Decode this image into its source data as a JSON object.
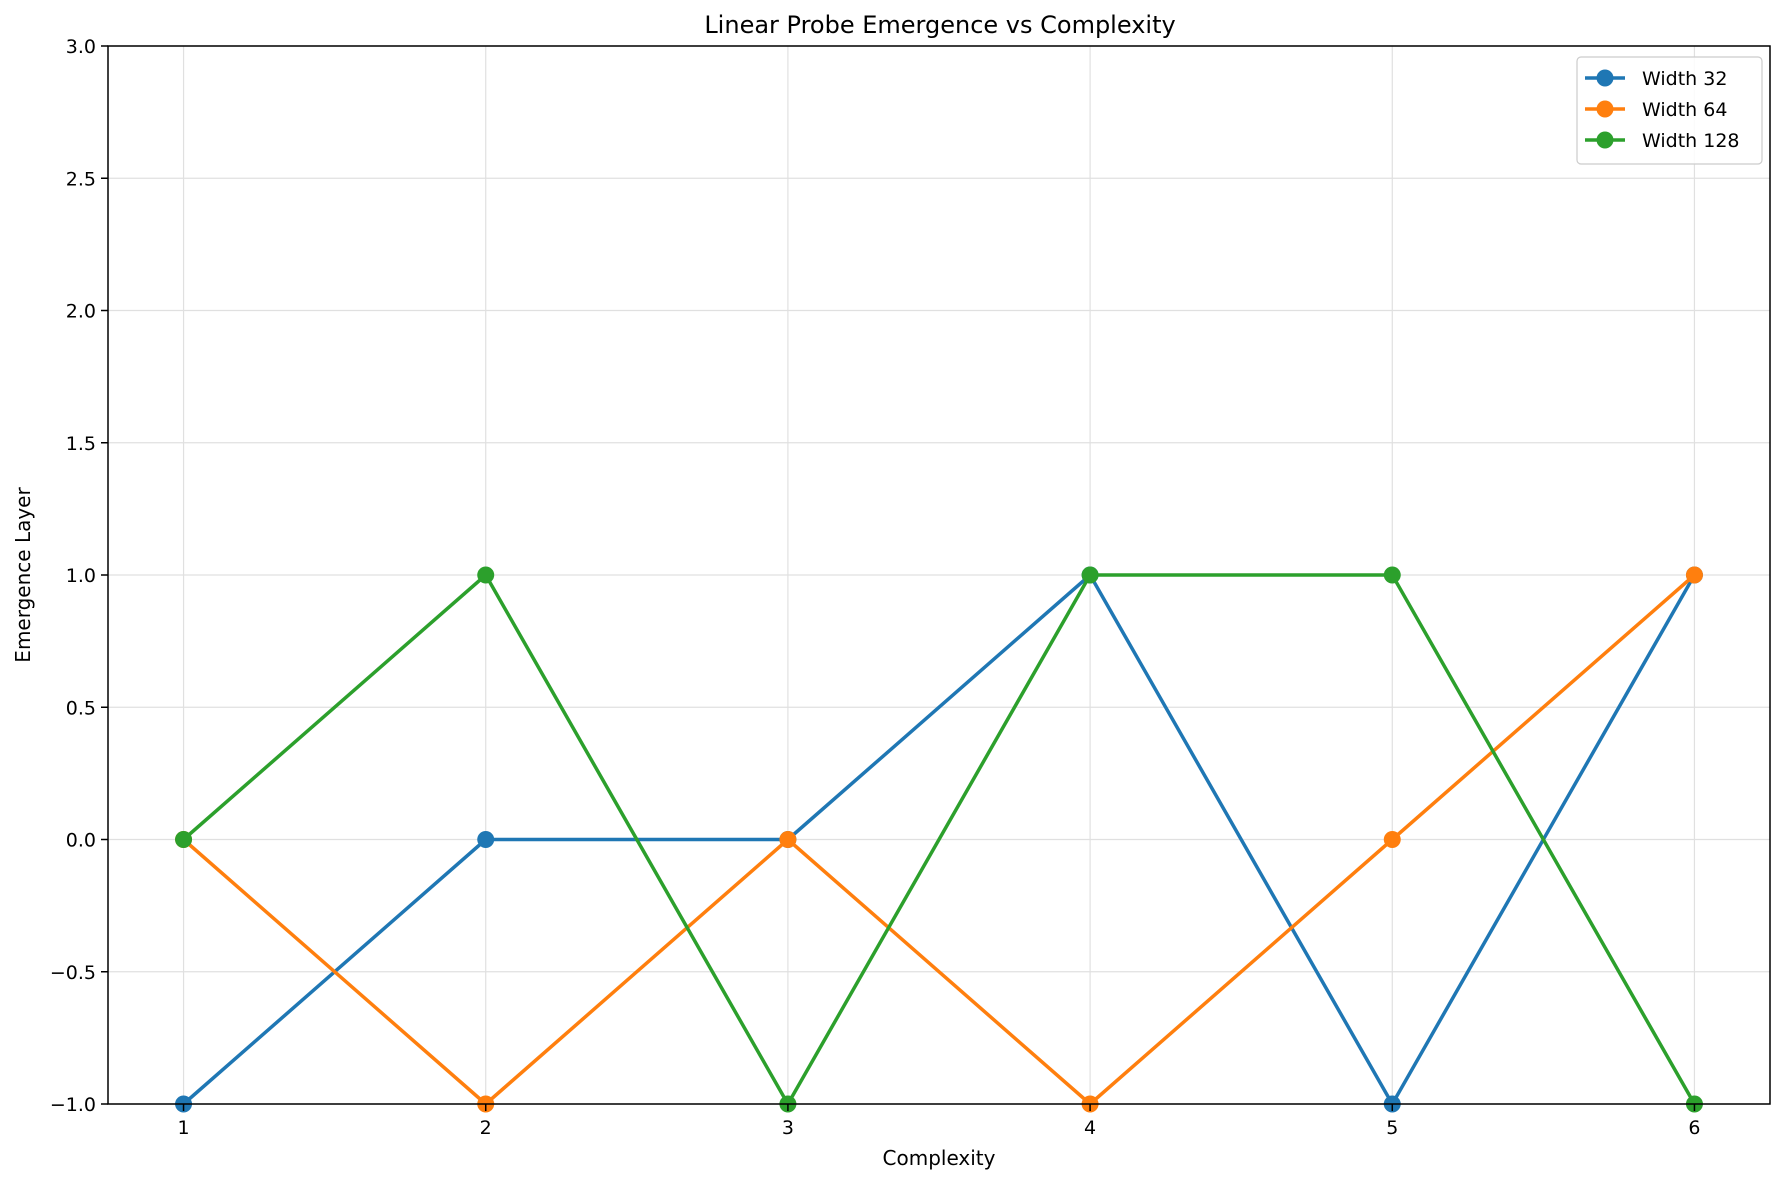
{
  "chart_data": {
    "type": "line",
    "title": "Linear Probe Emergence vs Complexity",
    "xlabel": "Complexity",
    "ylabel": "Emergence Layer",
    "x": [
      1,
      2,
      3,
      4,
      5,
      6
    ],
    "xticks": [
      "1",
      "2",
      "3",
      "4",
      "5",
      "6"
    ],
    "xlim": [
      0.75,
      6.25
    ],
    "ylim": [
      -1.0,
      3.0
    ],
    "yticks": [
      -1.0,
      -0.5,
      0.0,
      0.5,
      1.0,
      1.5,
      2.0,
      2.5,
      3.0
    ],
    "ytick_labels": [
      "−1.0",
      "−0.5",
      "0.0",
      "0.5",
      "1.0",
      "1.5",
      "2.0",
      "2.5",
      "3.0"
    ],
    "grid": true,
    "legend_position": "top-right",
    "series": [
      {
        "name": "Width 32",
        "color": "#1f77b4",
        "values": [
          -1,
          0,
          0,
          1,
          -1,
          1
        ]
      },
      {
        "name": "Width 64",
        "color": "#ff7f0e",
        "values": [
          0,
          -1,
          0,
          -1,
          0,
          1
        ]
      },
      {
        "name": "Width 128",
        "color": "#2ca02c",
        "values": [
          0,
          1,
          -1,
          1,
          1,
          -1
        ]
      }
    ]
  }
}
